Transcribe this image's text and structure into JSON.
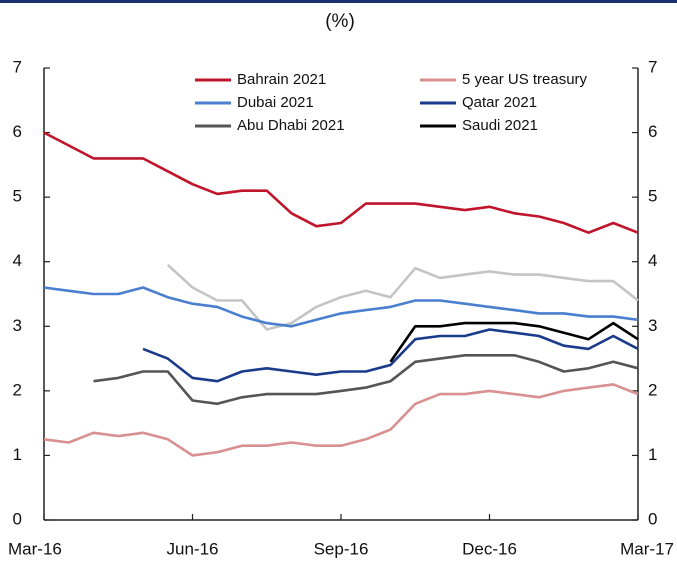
{
  "chart_data": {
    "type": "line",
    "title": "(%)",
    "x": [
      0,
      0.5,
      1,
      1.5,
      2,
      2.5,
      3,
      3.5,
      4,
      4.5,
      5,
      5.5,
      6,
      6.5,
      7,
      7.5,
      8,
      8.5,
      9,
      9.5,
      10,
      10.5,
      11,
      11.5,
      12
    ],
    "xlim": [
      0,
      12
    ],
    "xticks": [
      {
        "value": 0,
        "label": "Mar-16"
      },
      {
        "value": 3,
        "label": "Jun-16"
      },
      {
        "value": 6,
        "label": "Sep-16"
      },
      {
        "value": 9,
        "label": "Dec-16"
      },
      {
        "value": 12,
        "label": "Mar-17"
      }
    ],
    "ylim": [
      0,
      7
    ],
    "yticks": [
      0,
      1,
      2,
      3,
      4,
      5,
      6,
      7
    ],
    "y2lim": [
      0,
      7
    ],
    "y2ticks": [
      0,
      1,
      2,
      3,
      4,
      5,
      6,
      7
    ],
    "grid": false,
    "legend": "top",
    "series": [
      {
        "name": "Bahrain 2021",
        "color": "#c0142a",
        "values": [
          6.0,
          5.8,
          5.6,
          5.6,
          5.6,
          5.4,
          5.2,
          5.05,
          5.1,
          5.1,
          4.75,
          4.55,
          4.6,
          4.9,
          4.9,
          4.9,
          4.85,
          4.8,
          4.85,
          4.75,
          4.7,
          4.6,
          4.45,
          4.6,
          4.45
        ]
      },
      {
        "name": "5 year US treasury",
        "color": "#d89090",
        "values": [
          1.25,
          1.2,
          1.35,
          1.3,
          1.35,
          1.25,
          1.0,
          1.05,
          1.15,
          1.15,
          1.2,
          1.15,
          1.15,
          1.25,
          1.4,
          1.8,
          1.95,
          1.95,
          2.0,
          1.95,
          1.9,
          2.0,
          2.05,
          2.1,
          1.95
        ]
      },
      {
        "name": "Dubai 2021",
        "color": "#4a7fcf",
        "values": [
          3.6,
          3.55,
          3.5,
          3.5,
          3.6,
          3.45,
          3.35,
          3.3,
          3.15,
          3.05,
          3.0,
          3.1,
          3.2,
          3.25,
          3.3,
          3.4,
          3.4,
          3.35,
          3.3,
          3.25,
          3.2,
          3.2,
          3.15,
          3.15,
          3.1
        ]
      },
      {
        "name": "Qatar 2021",
        "color": "#1a3a8a",
        "values": [
          null,
          null,
          null,
          null,
          2.65,
          2.5,
          2.2,
          2.15,
          2.3,
          2.35,
          2.3,
          2.25,
          2.3,
          2.3,
          2.4,
          2.8,
          2.85,
          2.85,
          2.95,
          2.9,
          2.85,
          2.7,
          2.65,
          2.85,
          2.65
        ]
      },
      {
        "name": "Abu Dhabi 2021",
        "color": "#555555",
        "values": [
          null,
          null,
          2.15,
          2.2,
          2.3,
          2.3,
          1.85,
          1.8,
          1.9,
          1.95,
          1.95,
          1.95,
          2.0,
          2.05,
          2.15,
          2.45,
          2.5,
          2.55,
          2.55,
          2.55,
          2.45,
          2.3,
          2.35,
          2.45,
          2.35
        ]
      },
      {
        "name": "Saudi 2021",
        "color": "#000000",
        "values": [
          null,
          null,
          null,
          null,
          null,
          null,
          null,
          null,
          null,
          null,
          null,
          null,
          null,
          null,
          2.45,
          3.0,
          3.0,
          3.05,
          3.05,
          3.05,
          3.0,
          2.9,
          2.8,
          3.05,
          2.8
        ]
      },
      {
        "color": "#c4c4c4",
        "values": [
          null,
          null,
          null,
          null,
          null,
          3.95,
          3.6,
          3.4,
          3.4,
          2.95,
          3.05,
          3.3,
          3.45,
          3.55,
          3.45,
          3.9,
          3.75,
          3.8,
          3.85,
          3.8,
          3.8,
          3.75,
          3.7,
          3.7,
          3.4
        ]
      }
    ]
  }
}
